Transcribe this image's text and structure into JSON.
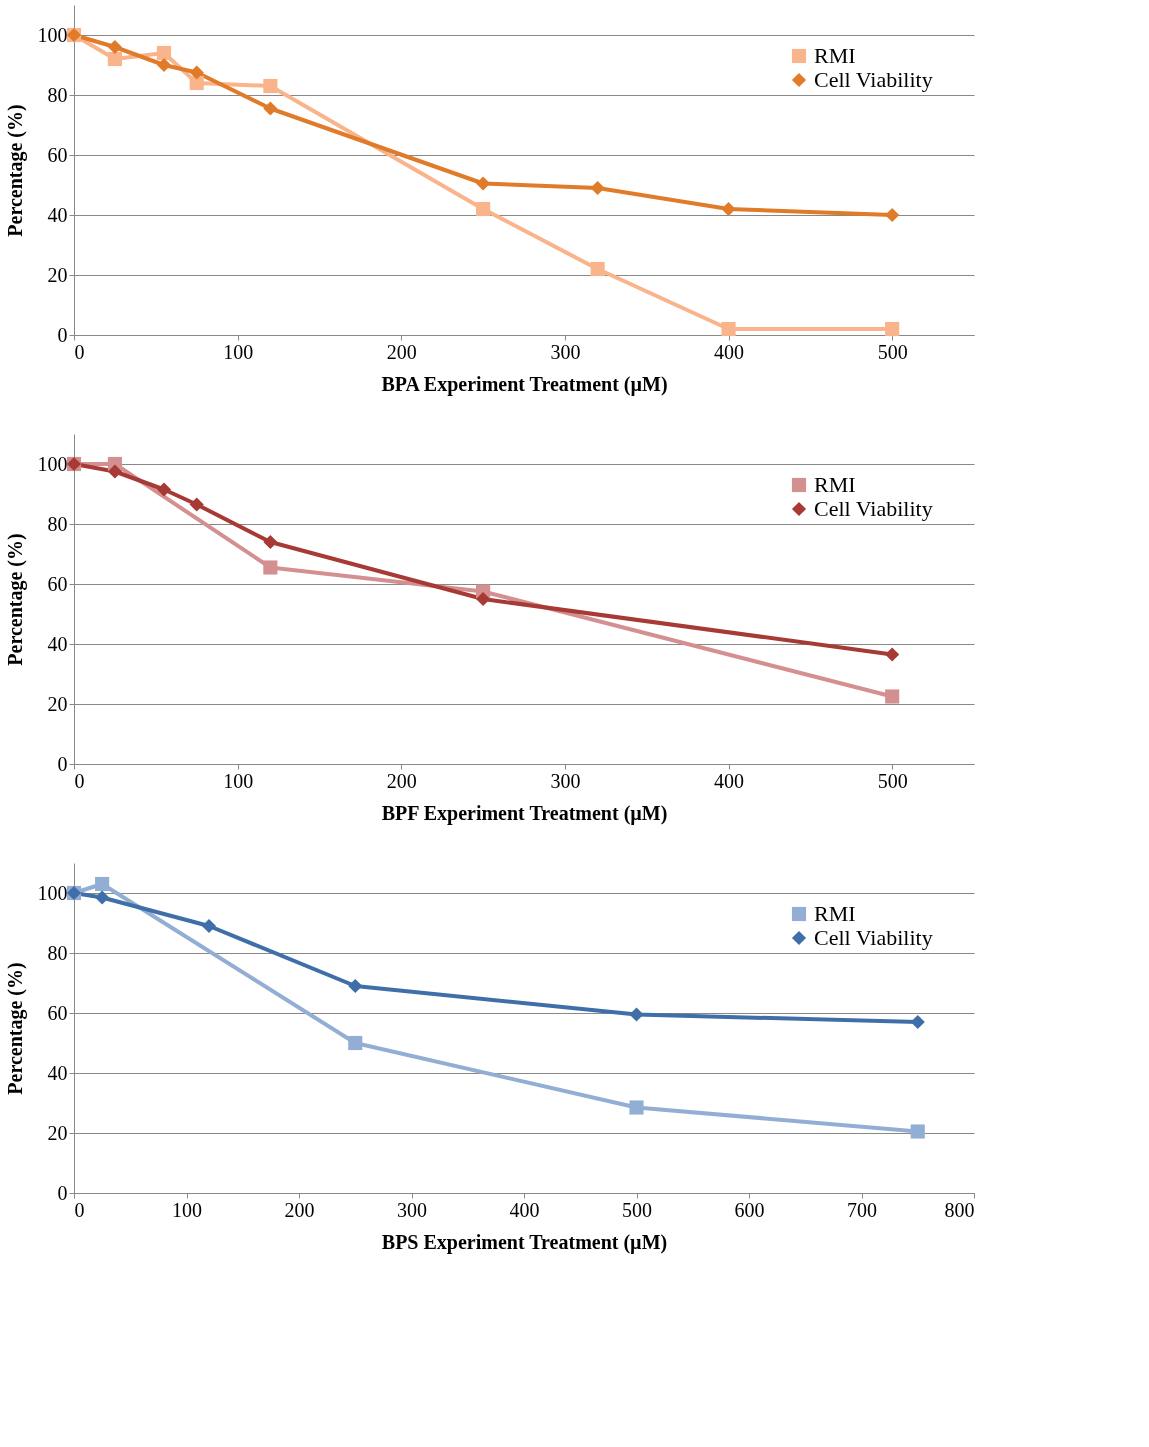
{
  "chart_data": [
    {
      "type": "line",
      "xlabel": "BPA Experiment Treatment (µM)",
      "ylabel": "Percentage (%)",
      "xlim": [
        0,
        550
      ],
      "xticks": [
        0,
        100,
        200,
        300,
        400,
        500
      ],
      "ylim": [
        0,
        110
      ],
      "yticks": [
        0,
        20,
        40,
        60,
        80,
        100
      ],
      "grid": "y",
      "legend": "top right",
      "line_style": "solid",
      "series": [
        {
          "name": "RMI",
          "color": "#f9b48c",
          "marker": "square",
          "x": [
            0,
            25,
            55,
            75,
            120,
            250,
            320,
            400,
            500
          ],
          "values": [
            100,
            92,
            94,
            84,
            83,
            42,
            22,
            2,
            2
          ]
        },
        {
          "name": "Cell Viability",
          "color": "#e07b2a",
          "marker": "diamond",
          "x": [
            0,
            25,
            55,
            75,
            120,
            250,
            320,
            400,
            500
          ],
          "values": [
            100,
            96,
            90,
            87.5,
            75.5,
            50.5,
            49,
            42,
            40
          ]
        }
      ]
    },
    {
      "type": "line",
      "xlabel": "BPF Experiment Treatment (µM)",
      "ylabel": "Percentage (%)",
      "xlim": [
        0,
        550
      ],
      "xticks": [
        0,
        100,
        200,
        300,
        400,
        500
      ],
      "ylim": [
        0,
        110
      ],
      "yticks": [
        0,
        20,
        40,
        60,
        80,
        100
      ],
      "grid": "y",
      "legend": "top right",
      "line_style": "solid",
      "series": [
        {
          "name": "RMI",
          "color": "#d49090",
          "marker": "square",
          "x": [
            0,
            25,
            120,
            250,
            500
          ],
          "values": [
            100,
            100,
            65.5,
            57.5,
            22.5
          ]
        },
        {
          "name": "Cell Viability",
          "color": "#a83a36",
          "marker": "diamond",
          "x": [
            0,
            25,
            55,
            75,
            120,
            250,
            500
          ],
          "values": [
            100,
            97.5,
            91.5,
            86.5,
            74,
            55,
            36.5
          ]
        }
      ]
    },
    {
      "type": "line",
      "xlabel": "BPS Experiment Treatment (µM)",
      "ylabel": "Percentage (%)",
      "xlim": [
        0,
        800
      ],
      "xticks": [
        0,
        100,
        200,
        300,
        400,
        500,
        600,
        700,
        800
      ],
      "ylim": [
        0,
        110
      ],
      "yticks": [
        0,
        20,
        40,
        60,
        80,
        100
      ],
      "grid": "y",
      "legend": "top right",
      "line_style": "solid",
      "series": [
        {
          "name": "RMI",
          "color": "#93aed4",
          "marker": "square",
          "x": [
            0,
            25,
            250,
            500,
            750
          ],
          "values": [
            100,
            103,
            50,
            28.5,
            20.5
          ]
        },
        {
          "name": "Cell Viability",
          "color": "#3f6fa8",
          "marker": "diamond",
          "x": [
            0,
            25,
            120,
            250,
            500,
            750
          ],
          "values": [
            100,
            98.5,
            89,
            69,
            59.5,
            57
          ]
        }
      ]
    }
  ]
}
